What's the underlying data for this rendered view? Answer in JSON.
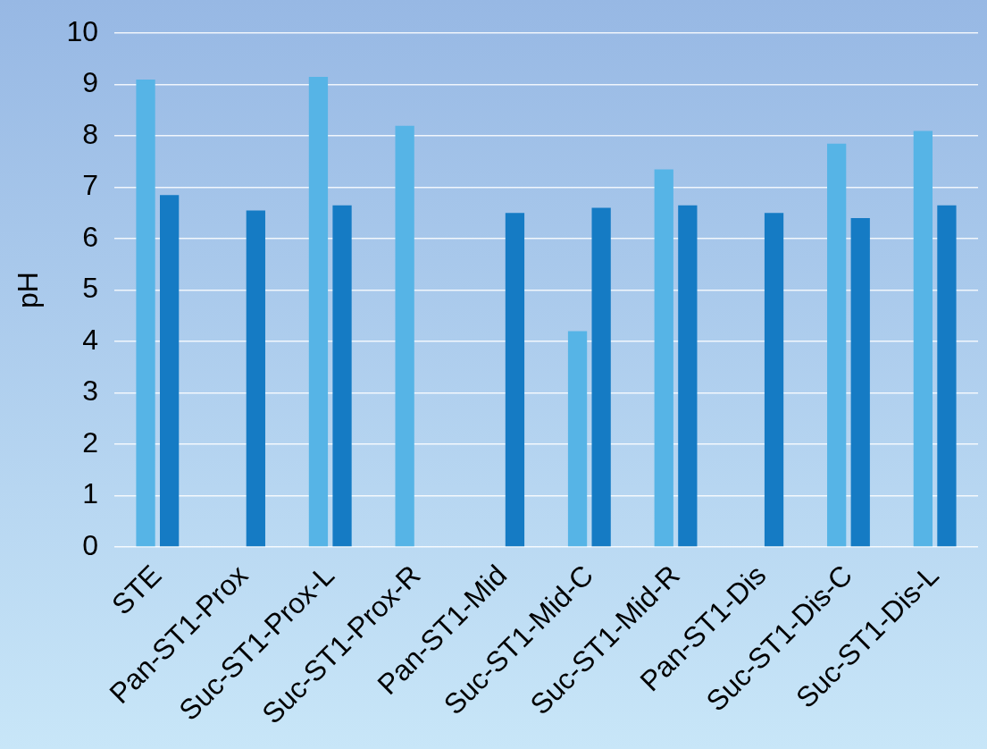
{
  "chart_data": {
    "type": "bar",
    "ylabel": "pH",
    "categories": [
      "STE",
      "Pan-ST1-Prox",
      "Suc-ST1-Prox-L",
      "Suc-ST1-Prox-R",
      "Pan-ST1-Mid",
      "Suc-ST1-Mid-C",
      "Suc-ST1-Mid-R",
      "Pan-ST1-Dis",
      "Suc-ST1-Dis-C",
      "Suc-ST1-Dis-L"
    ],
    "series": [
      {
        "color": "#56b4e6",
        "values": [
          9.1,
          null,
          9.15,
          8.2,
          null,
          4.2,
          7.35,
          null,
          7.85,
          8.1
        ]
      },
      {
        "color": "#157bc4",
        "values": [
          6.85,
          6.55,
          6.65,
          null,
          6.5,
          6.6,
          6.65,
          6.5,
          6.4,
          6.65
        ]
      }
    ],
    "ylim": [
      0,
      10
    ],
    "yticks": [
      0,
      1,
      2,
      3,
      4,
      5,
      6,
      7,
      8,
      9,
      10
    ],
    "grid": "y",
    "legend": false
  }
}
